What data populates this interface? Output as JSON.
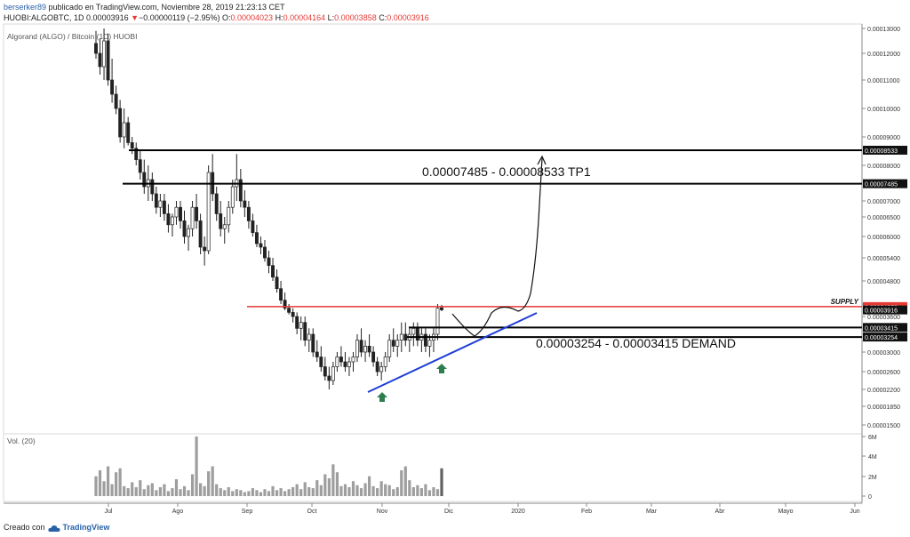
{
  "header": {
    "user": "berserker89",
    "published": "publicado en TradingView.com, Noviembre 28, 2019 21:23:13 CET",
    "symbol": "HUOBI:ALGOBTC, 1D",
    "last": "0.00003916",
    "change_arrow": "▼",
    "change": "−0.00000119 (−2.95%)",
    "o_label": "O:",
    "o_value": "0.00004023",
    "h_label": "H:",
    "h_value": "0.00004164",
    "l_label": "L:",
    "l_value": "0.00003858",
    "c_label": "C:",
    "c_value": "0.00003916"
  },
  "legend": {
    "title": "Algorand (ALGO) / Bitcoin (1D) HUOBI",
    "volume_label": "Vol. (20)"
  },
  "footer": {
    "created": "Creado con",
    "brand": "TradingView"
  },
  "colors": {
    "candle": "#222222",
    "supply_line": "#e53935",
    "trendline": "#1f3fd6",
    "arrow": "#2e7d4f",
    "volume_bar": "#9e9e9e",
    "volume_last": "#616161",
    "brand": "#2a62a8"
  },
  "chart_data": {
    "type": "candlestick",
    "pair": "ALGO/BTC",
    "exchange": "HUOBI",
    "timeframe": "1D",
    "price_axis_labels": [
      "0.00013000",
      "0.00012000",
      "0.00011000",
      "0.00010000",
      "0.00009000",
      "0.00008000",
      "0.00007000",
      "0.00006500",
      "0.00006000",
      "0.00005400",
      "0.00004800",
      "0.00004200",
      "0.00003600",
      "0.00003000",
      "0.00002600",
      "0.00002200",
      "0.00001850",
      "0.00001500"
    ],
    "volume_axis_labels": [
      "6M",
      "4M",
      "2M",
      "0"
    ],
    "x_axis_labels": [
      "Jul",
      "Ago",
      "Sep",
      "Oct",
      "Nov",
      "Dic",
      "2020",
      "Feb",
      "Mar",
      "Abr",
      "Mayo",
      "Jun"
    ],
    "levels": [
      {
        "name": "TP1 top",
        "value": "0.00008533"
      },
      {
        "name": "TP1 bottom",
        "value": "0.00007485"
      },
      {
        "name": "supply",
        "value": "0.00004079",
        "label": "SUPPLY"
      },
      {
        "name": "last price",
        "value": "0.00003916"
      },
      {
        "name": "demand top",
        "value": "0.00003415"
      },
      {
        "name": "demand bottom",
        "value": "0.00003254"
      }
    ],
    "annotations": [
      "0.00007485 - 0.00008533 TP1",
      "0.00003254 - 0.00003415 DEMAND"
    ],
    "ohlc": [
      [
        0.000124,
        0.000129,
        0.000118,
        0.00012
      ],
      [
        0.00012,
        0.000126,
        0.000112,
        0.000115
      ],
      [
        0.000115,
        0.00013,
        0.00011,
        0.000125
      ],
      [
        0.000125,
        0.000128,
        0.000108,
        0.00011
      ],
      [
        0.00011,
        0.000118,
        0.000102,
        0.000105
      ],
      [
        0.000105,
        0.000108,
        9.8e-05,
        0.0001
      ],
      [
        0.0001,
        0.000103,
        8.8e-05,
        9e-05
      ],
      [
        9e-05,
        0.0001,
        8.6e-05,
        9.5e-05
      ],
      [
        9.5e-05,
        9.7e-05,
        8.7e-05,
        8.8e-05
      ],
      [
        8.8e-05,
        9e-05,
        8.4e-05,
        8.6e-05
      ],
      [
        8.6e-05,
        8.8e-05,
        8e-05,
        8.2e-05
      ],
      [
        8.2e-05,
        8.5e-05,
        7.6e-05,
        7.8e-05
      ],
      [
        7.8e-05,
        8.2e-05,
        7.2e-05,
        7.4e-05
      ],
      [
        7.4e-05,
        8e-05,
        7e-05,
        7.6e-05
      ],
      [
        7.6e-05,
        7.8e-05,
        7e-05,
        7.2e-05
      ],
      [
        7.2e-05,
        7.4e-05,
        6.6e-05,
        6.8e-05
      ],
      [
        6.8e-05,
        7.2e-05,
        6.5e-05,
        7e-05
      ],
      [
        7e-05,
        7.2e-05,
        6.4e-05,
        6.6e-05
      ],
      [
        6.6e-05,
        6.9e-05,
        6.1e-05,
        6.3e-05
      ],
      [
        6.3e-05,
        6.6e-05,
        6e-05,
        6.5e-05
      ],
      [
        6.5e-05,
        7e-05,
        6.3e-05,
        6.8e-05
      ],
      [
        6.8e-05,
        7e-05,
        6.2e-05,
        6.4e-05
      ],
      [
        6.4e-05,
        6.7e-05,
        5.8e-05,
        6e-05
      ],
      [
        6e-05,
        6.3e-05,
        5.6e-05,
        6.2e-05
      ],
      [
        6.2e-05,
        7e-05,
        6e-05,
        6.8e-05
      ],
      [
        6.8e-05,
        7.2e-05,
        6.2e-05,
        6.4e-05
      ],
      [
        6.4e-05,
        6.6e-05,
        5.5e-05,
        5.7e-05
      ],
      [
        5.7e-05,
        6e-05,
        5.2e-05,
        5.6e-05
      ],
      [
        5.6e-05,
        8e-05,
        5.5e-05,
        7.8e-05
      ],
      [
        7.8e-05,
        8.4e-05,
        7e-05,
        7.2e-05
      ],
      [
        7.2e-05,
        7.4e-05,
        6.4e-05,
        6.6e-05
      ],
      [
        6.6e-05,
        7e-05,
        6e-05,
        6.2e-05
      ],
      [
        6.2e-05,
        6.5e-05,
        5.8e-05,
        6.3e-05
      ],
      [
        6.3e-05,
        7e-05,
        6.1e-05,
        6.8e-05
      ],
      [
        6.8e-05,
        7.6e-05,
        6.6e-05,
        7.4e-05
      ],
      [
        7.4e-05,
        8.4e-05,
        7e-05,
        7.6e-05
      ],
      [
        7.6e-05,
        7.9e-05,
        6.8e-05,
        7e-05
      ],
      [
        7e-05,
        7.3e-05,
        6.5e-05,
        6.8e-05
      ],
      [
        6.8e-05,
        7e-05,
        6.2e-05,
        6.4e-05
      ],
      [
        6.4e-05,
        6.6e-05,
        6e-05,
        6.1e-05
      ],
      [
        6.1e-05,
        6.3e-05,
        5.7e-05,
        5.8e-05
      ],
      [
        5.8e-05,
        6e-05,
        5.5e-05,
        5.7e-05
      ],
      [
        5.7e-05,
        5.9e-05,
        5.3e-05,
        5.4e-05
      ],
      [
        5.4e-05,
        5.6e-05,
        5e-05,
        5.2e-05
      ],
      [
        5.2e-05,
        5.4e-05,
        4.8e-05,
        4.9e-05
      ],
      [
        4.9e-05,
        5.1e-05,
        4.5e-05,
        4.6e-05
      ],
      [
        4.6e-05,
        4.8e-05,
        4.2e-05,
        4.3e-05
      ],
      [
        4.3e-05,
        4.5e-05,
        3.9e-05,
        4e-05
      ],
      [
        4e-05,
        4.2e-05,
        3.7e-05,
        3.8e-05
      ],
      [
        3.8e-05,
        4e-05,
        3.5e-05,
        3.6e-05
      ],
      [
        3.6e-05,
        3.8e-05,
        3.3e-05,
        3.4e-05
      ],
      [
        3.4e-05,
        3.6e-05,
        3.2e-05,
        3.5e-05
      ],
      [
        3.5e-05,
        3.6e-05,
        3.1e-05,
        3.2e-05
      ],
      [
        3.2e-05,
        3.4e-05,
        3e-05,
        3.3e-05
      ],
      [
        3.3e-05,
        3.4e-05,
        2.9e-05,
        3e-05
      ],
      [
        3e-05,
        3.2e-05,
        2.8e-05,
        2.9e-05
      ],
      [
        2.9e-05,
        3.1e-05,
        2.6e-05,
        2.7e-05
      ],
      [
        2.7e-05,
        2.9e-05,
        2.4e-05,
        2.5e-05
      ],
      [
        2.5e-05,
        2.7e-05,
        2.2e-05,
        2.4e-05
      ],
      [
        2.4e-05,
        2.8e-05,
        2.3e-05,
        2.7e-05
      ],
      [
        2.7e-05,
        3e-05,
        2.6e-05,
        2.9e-05
      ],
      [
        2.9e-05,
        3.1e-05,
        2.7e-05,
        2.8e-05
      ],
      [
        2.8e-05,
        3e-05,
        2.6e-05,
        2.7e-05
      ],
      [
        2.7e-05,
        2.9e-05,
        2.5e-05,
        2.8e-05
      ],
      [
        2.8e-05,
        3e-05,
        2.6e-05,
        2.9e-05
      ],
      [
        2.9e-05,
        3.3e-05,
        2.8e-05,
        3.2e-05
      ],
      [
        3.2e-05,
        3.4e-05,
        2.9e-05,
        3e-05
      ],
      [
        3e-05,
        3.2e-05,
        2.8e-05,
        3.1e-05
      ],
      [
        3.1e-05,
        3.3e-05,
        2.9e-05,
        3e-05
      ],
      [
        3e-05,
        3.1e-05,
        2.7e-05,
        2.8e-05
      ],
      [
        2.8e-05,
        2.9e-05,
        2.5e-05,
        2.6e-05
      ],
      [
        2.6e-05,
        2.8e-05,
        2.4e-05,
        2.7e-05
      ],
      [
        2.7e-05,
        3e-05,
        2.6e-05,
        2.9e-05
      ],
      [
        2.9e-05,
        3.3e-05,
        2.8e-05,
        3.2e-05
      ],
      [
        3.2e-05,
        3.4e-05,
        3e-05,
        3.1e-05
      ],
      [
        3.1e-05,
        3.3e-05,
        2.9e-05,
        3.2e-05
      ],
      [
        3.2e-05,
        3.5e-05,
        3e-05,
        3.3e-05
      ],
      [
        3.3e-05,
        3.5e-05,
        3.1e-05,
        3.2e-05
      ],
      [
        3.2e-05,
        3.4e-05,
        3e-05,
        3.3e-05
      ],
      [
        3.3e-05,
        3.5e-05,
        3.1e-05,
        3.4e-05
      ],
      [
        3.4e-05,
        3.5e-05,
        3.1e-05,
        3.2e-05
      ],
      [
        3.2e-05,
        3.4e-05,
        3e-05,
        3.3e-05
      ],
      [
        3.3e-05,
        3.4e-05,
        3e-05,
        3.1e-05
      ],
      [
        3.1e-05,
        3.3e-05,
        2.9e-05,
        3.2e-05
      ],
      [
        3.2e-05,
        3.4e-05,
        3e-05,
        3.3e-05
      ],
      [
        3.3e-05,
        4.2e-05,
        3.2e-05,
        4e-05
      ],
      [
        4.02e-05,
        4.16e-05,
        3.86e-05,
        3.92e-05
      ]
    ],
    "volume_millions": [
      2.0,
      2.6,
      1.5,
      3.0,
      1.2,
      2.4,
      2.8,
      1.0,
      0.8,
      1.4,
      0.9,
      1.6,
      0.7,
      1.1,
      1.3,
      0.6,
      0.9,
      1.2,
      0.5,
      0.8,
      1.7,
      0.7,
      1.0,
      0.6,
      2.2,
      6.0,
      1.3,
      1.0,
      2.5,
      3.0,
      1.2,
      0.8,
      0.6,
      0.9,
      0.5,
      0.7,
      0.6,
      0.4,
      0.5,
      0.8,
      0.6,
      0.4,
      0.7,
      0.5,
      1.0,
      0.6,
      0.8,
      0.5,
      0.7,
      0.9,
      1.2,
      0.7,
      1.4,
      0.9,
      0.8,
      1.6,
      1.1,
      2.2,
      1.8,
      3.2,
      2.4,
      1.0,
      1.2,
      0.9,
      1.5,
      1.1,
      0.8,
      1.3,
      2.0,
      1.0,
      0.8,
      1.5,
      1.2,
      1.1,
      0.7,
      0.9,
      2.6,
      3.0,
      1.6,
      0.9,
      1.1,
      0.8,
      1.2,
      0.6,
      0.9,
      0.7,
      2.8
    ]
  }
}
